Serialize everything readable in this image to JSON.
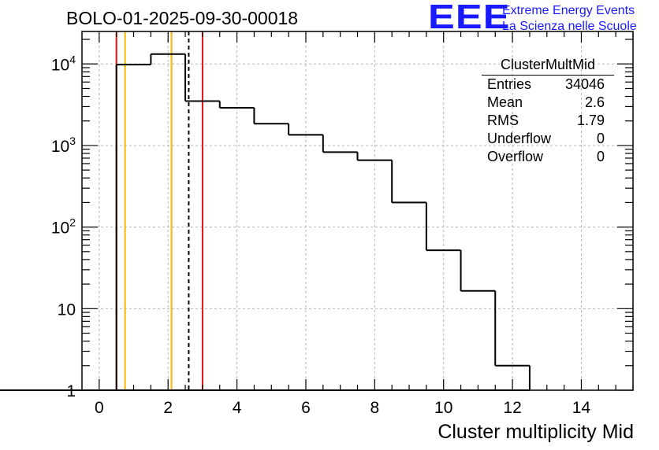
{
  "title": "BOLO-01-2025-09-30-00018",
  "logo": {
    "mark": "EEE",
    "line1": "Extreme Energy Events",
    "line2": "La Scienza nelle Scuole",
    "color": "#1a1aff"
  },
  "stats_box": {
    "name": "ClusterMultMid",
    "rows": [
      {
        "label": "Entries",
        "value": "34046"
      },
      {
        "label": "Mean",
        "value": "2.6"
      },
      {
        "label": "RMS",
        "value": "1.79"
      },
      {
        "label": "Underflow",
        "value": "0"
      },
      {
        "label": "Overflow",
        "value": "0"
      }
    ]
  },
  "chart_data": {
    "type": "bar",
    "style": "step-histogram",
    "title": "BOLO-01-2025-09-30-00018",
    "xlabel": "Cluster multiplicity Mid",
    "ylabel": "",
    "xlim": [
      -0.5,
      15.5
    ],
    "ylim": [
      1,
      25000
    ],
    "yscale": "log",
    "grid": true,
    "bin_edges": [
      0.5,
      1.5,
      2.5,
      3.5,
      4.5,
      5.5,
      6.5,
      7.5,
      8.5,
      9.5,
      10.5,
      11.5,
      12.5
    ],
    "values": [
      9800,
      13200,
      3500,
      2900,
      1850,
      1350,
      830,
      660,
      200,
      52,
      16.5,
      2,
      1
    ],
    "x_ticks": [
      {
        "value": 0,
        "label": "0"
      },
      {
        "value": 2,
        "label": "2"
      },
      {
        "value": 4,
        "label": "4"
      },
      {
        "value": 6,
        "label": "6"
      },
      {
        "value": 8,
        "label": "8"
      },
      {
        "value": 10,
        "label": "10"
      },
      {
        "value": 12,
        "label": "12"
      },
      {
        "value": 14,
        "label": "14"
      }
    ],
    "y_ticks": [
      {
        "value": 1,
        "label": "1"
      },
      {
        "value": 10,
        "label": "10"
      },
      {
        "value": 100,
        "base": "10",
        "exp": "2"
      },
      {
        "value": 1000,
        "base": "10",
        "exp": "3"
      },
      {
        "value": 10000,
        "base": "10",
        "exp": "4"
      }
    ],
    "reference_lines": [
      {
        "name": "lower-red-line",
        "x": 0.5,
        "color": "#e8140c",
        "dashed": false
      },
      {
        "name": "lower-orange-line",
        "x": 0.75,
        "color": "#f5b400",
        "dashed": false
      },
      {
        "name": "upper-orange-line",
        "x": 2.1,
        "color": "#f5b400",
        "dashed": false
      },
      {
        "name": "mean-dashed-line",
        "x": 2.6,
        "color": "#000000",
        "dashed": true
      },
      {
        "name": "upper-red-line",
        "x": 3.0,
        "color": "#e8140c",
        "dashed": false
      }
    ]
  }
}
